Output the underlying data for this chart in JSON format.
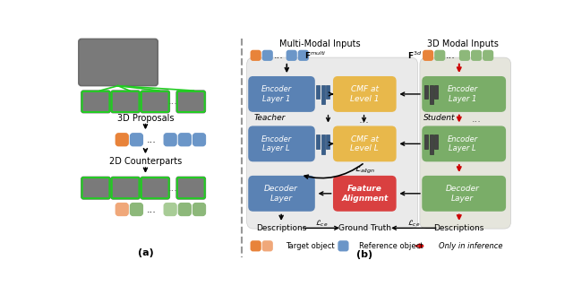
{
  "fig_width": 6.4,
  "fig_height": 3.29,
  "dpi": 100,
  "bg_color": "#ffffff",
  "orange_color": "#E8833A",
  "orange_light": "#F0A87A",
  "blue_color": "#6B96C8",
  "green_color": "#8DB87A",
  "green_light": "#A8CC96",
  "gold_color": "#E8B84B",
  "red_color": "#D94040",
  "dark_blue_box": "#5A82B4",
  "dark_green_box": "#7AAD68",
  "title_a": "(a)",
  "title_b": "(b)",
  "label_3d_proposals": "3D Proposals",
  "label_2d_counterparts": "2D Counterparts",
  "label_teacher": "Teacher",
  "label_student": "Student",
  "label_multimodal": "Multi-Modal Inputs",
  "label_3d_modal": "3D Modal Inputs",
  "label_enc1_teacher": "Encoder\nLayer 1",
  "label_encL_teacher": "Encoder\nLayer L",
  "label_enc1_student": "Encoder\nLayer 1",
  "label_encL_student": "Encoder\nLayer L",
  "label_cmf1": "CMF at\nLevel 1",
  "label_cmfL": "CMF at\nLevel L",
  "label_dec_teacher": "Decoder\nLayer",
  "label_dec_student": "Decoder\nLayer",
  "label_feat_align": "Feature\nAlignment",
  "label_f_multi": "$\\mathbf{F}^{multi}$",
  "label_f_3d": "$\\mathbf{F}^{3d}$",
  "label_align": "$\\mathcal{L}_{align}$",
  "label_ce": "$\\mathcal{L}_{ce}$",
  "label_desc_teacher": "Descriptions",
  "label_ground_truth": "Ground Truth",
  "label_desc_student": "Descriptions",
  "legend_target": "Target object",
  "legend_reference": "Reference object",
  "legend_inference": "Only in inference"
}
